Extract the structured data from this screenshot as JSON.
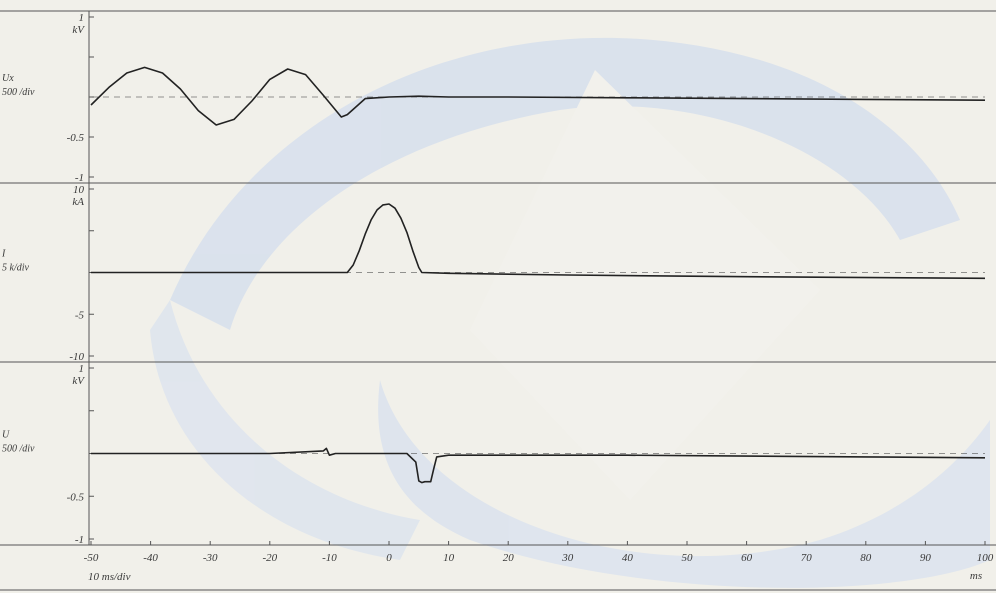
{
  "chart_data": {
    "type": "line",
    "x_unit": "ms",
    "x_scale_label": "10 ms/div",
    "x_ticks": [
      -50,
      -40,
      -30,
      -20,
      -10,
      0,
      10,
      20,
      30,
      40,
      50,
      60,
      70,
      80,
      90,
      100
    ],
    "x_tick_labels": [
      "-50",
      "-40",
      "-30",
      "-20",
      "-10",
      "0",
      "10",
      "20",
      "30",
      "40",
      "50",
      "60",
      "70",
      "80",
      "90",
      "100"
    ],
    "xlim": [
      -50,
      100
    ],
    "panels": [
      {
        "channel_label": "Ux",
        "scale_label": "500 /div",
        "unit": "kV",
        "ylim": [
          -1,
          1
        ],
        "y_tick_labels": [
          {
            "value": 1,
            "label": "1"
          },
          {
            "value": -0.5,
            "label": "-0.5"
          },
          {
            "value": -1,
            "label": "-1"
          }
        ],
        "baseline": 0,
        "series": {
          "x": [
            -50,
            -47,
            -44,
            -41,
            -38,
            -35,
            -32,
            -29,
            -26,
            -23,
            -20,
            -17,
            -14,
            -11,
            -8,
            -7,
            -4,
            0,
            5,
            10,
            20,
            40,
            60,
            80,
            100
          ],
          "y": [
            -0.1,
            0.12,
            0.3,
            0.37,
            0.3,
            0.1,
            -0.17,
            -0.35,
            -0.28,
            -0.05,
            0.22,
            0.35,
            0.28,
            0.02,
            -0.25,
            -0.22,
            -0.02,
            0.0,
            0.01,
            0.0,
            0.0,
            -0.01,
            -0.02,
            -0.03,
            -0.04
          ]
        }
      },
      {
        "channel_label": "I",
        "scale_label": "5 k/div",
        "unit": "kA",
        "ylim": [
          -10,
          10
        ],
        "y_tick_labels": [
          {
            "value": 10,
            "label": "10"
          },
          {
            "value": -5,
            "label": "-5"
          },
          {
            "value": -10,
            "label": "-10"
          }
        ],
        "baseline": 0,
        "series": {
          "x": [
            -50,
            -7,
            -6,
            -5,
            -4,
            -3,
            -2,
            -1,
            0,
            1,
            2,
            3,
            4,
            5,
            5.5,
            10,
            30,
            60,
            100
          ],
          "y": [
            0,
            0,
            0.9,
            2.6,
            4.6,
            6.3,
            7.5,
            8.1,
            8.2,
            7.7,
            6.5,
            4.8,
            2.6,
            0.6,
            0,
            -0.1,
            -0.3,
            -0.5,
            -0.7
          ]
        }
      },
      {
        "channel_label": "U",
        "scale_label": "500 /div",
        "unit": "kV",
        "ylim": [
          -1,
          1
        ],
        "y_tick_labels": [
          {
            "value": 1,
            "label": "1"
          },
          {
            "value": -0.5,
            "label": "-0.5"
          },
          {
            "value": -1,
            "label": "-1"
          }
        ],
        "baseline": 0,
        "series": {
          "x": [
            -50,
            -20,
            -11,
            -10.5,
            -10,
            -9,
            -5,
            0,
            3,
            4.5,
            5,
            5.5,
            6,
            7,
            7.5,
            8,
            10,
            20,
            40,
            60,
            80,
            100
          ],
          "y": [
            0,
            0,
            0.03,
            0.06,
            -0.02,
            0,
            0,
            0.0,
            0.0,
            -0.1,
            -0.32,
            -0.34,
            -0.33,
            -0.33,
            -0.18,
            -0.04,
            -0.02,
            -0.02,
            -0.02,
            -0.03,
            -0.04,
            -0.05
          ]
        }
      }
    ]
  }
}
